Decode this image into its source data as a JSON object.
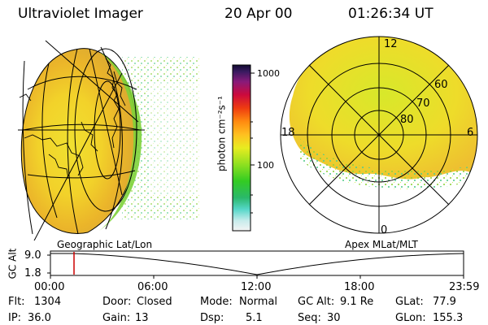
{
  "header": {
    "instrument": "Ultraviolet Imager",
    "date": "20 Apr 00",
    "time": "01:26:34 UT"
  },
  "colorbar": {
    "unit_label": "photon cm⁻²s⁻¹",
    "tick_1000": "1000",
    "tick_100": "100"
  },
  "geo_panel": {
    "caption": "Geographic Lat/Lon"
  },
  "polar_panel": {
    "caption": "Apex MLat/MLT",
    "mlt_12": "12",
    "mlt_18": "18",
    "mlt_6": "6",
    "mlt_0": "0",
    "lat_60": "60",
    "lat_70": "70",
    "lat_80": "80"
  },
  "altitude_plot": {
    "ylabel": "GC Alt",
    "ytick_top": "9.0",
    "ytick_bottom": "1.8",
    "xticks": [
      "00:00",
      "06:00",
      "12:00",
      "18:00",
      "23:59"
    ],
    "marker_time": "01:26"
  },
  "status": {
    "flt_label": "Flt:",
    "flt_value": "1304",
    "ip_label": "IP:",
    "ip_value": "36.0",
    "door_label": "Door:",
    "door_value": "Closed",
    "gain_label": "Gain:",
    "gain_value": "13",
    "mode_label": "Mode:",
    "mode_value": "Normal",
    "dsp_label": "Dsp:",
    "dsp_value": "5.1",
    "gcalt_label": "GC Alt:",
    "gcalt_value": "9.1 Re",
    "seq_label": "Seq:",
    "seq_value": "30",
    "glat_label": "GLat:",
    "glat_value": "77.9",
    "glon_label": "GLon:",
    "glon_value": "155.3"
  },
  "colors": {
    "accent_marker": "#cc0000",
    "background": "#ffffff",
    "grid": "#000000"
  }
}
